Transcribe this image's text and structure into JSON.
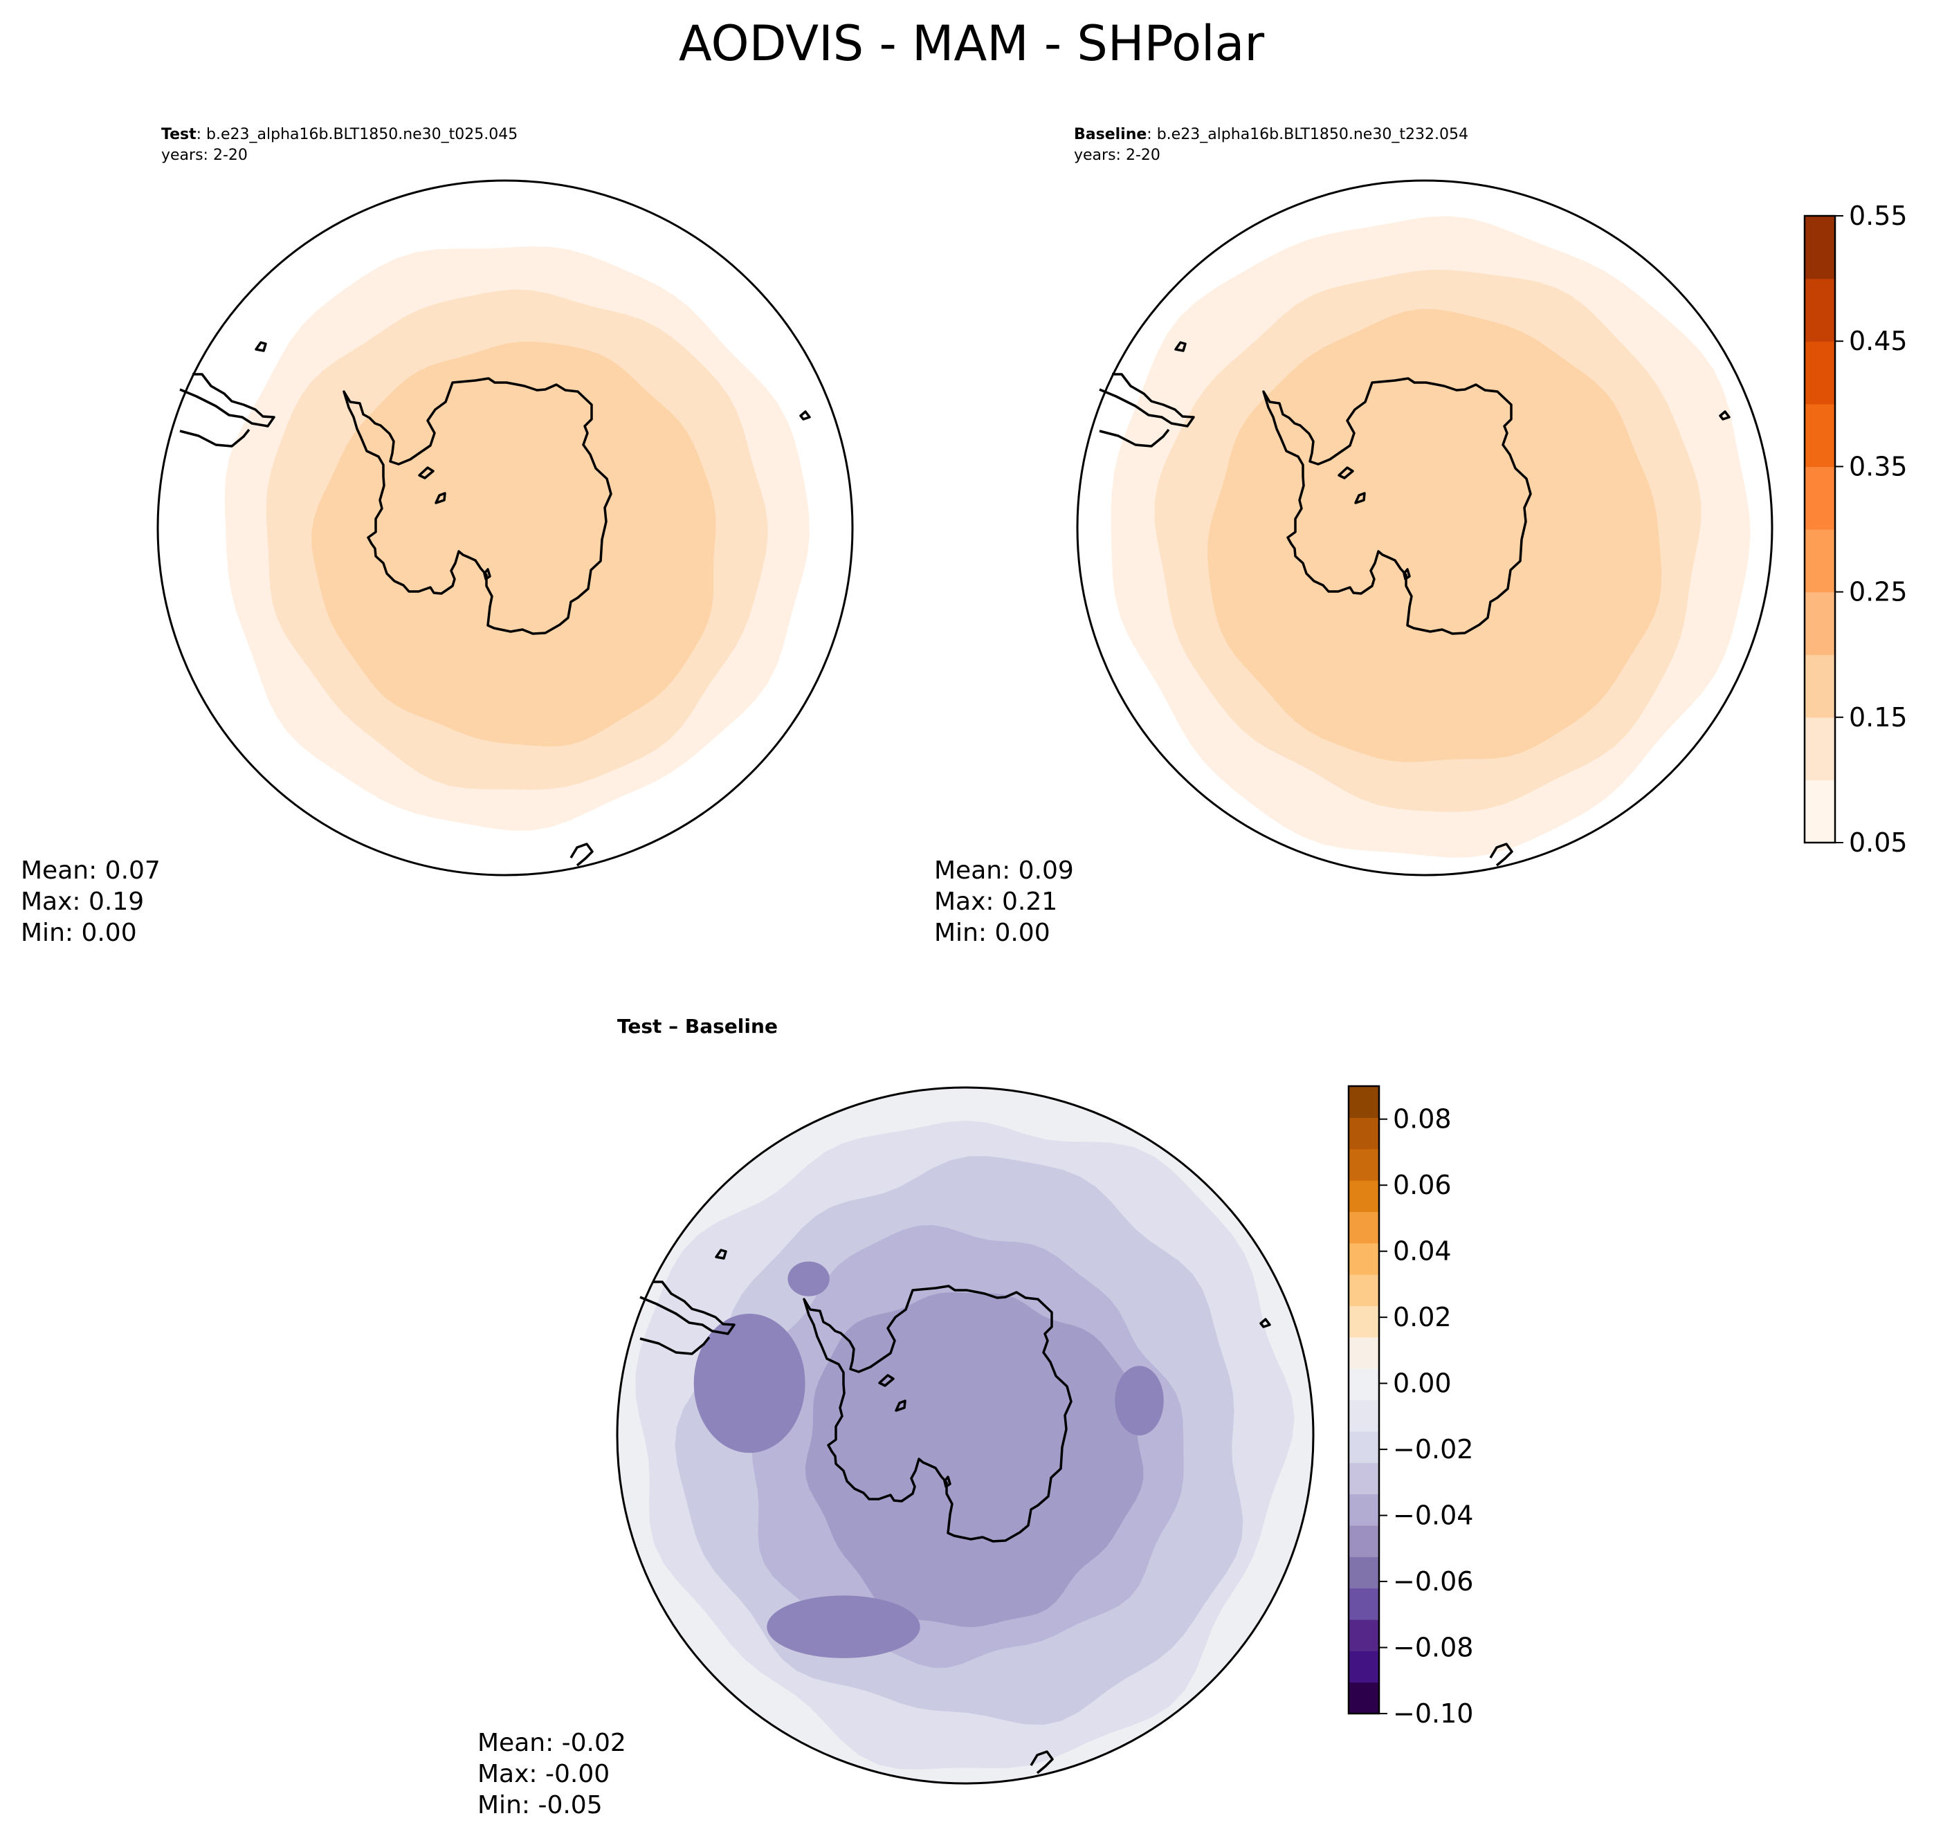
{
  "title": "AODVIS - MAM - SHPolar",
  "panels": {
    "test": {
      "label": "Test",
      "case": ": b.e23_alpha16b.BLT1850.ne30_t025.045",
      "years": "years: 2-20",
      "stats": {
        "mean": "Mean:  0.07",
        "max": "Max:  0.19",
        "min": "Min:  0.00"
      }
    },
    "baseline": {
      "label": "Baseline",
      "case": ": b.e23_alpha16b.BLT1850.ne30_t232.054",
      "years": "years: 2-20",
      "stats": {
        "mean": "Mean:  0.09",
        "max": "Max:  0.21",
        "min": "Min:  0.00"
      }
    },
    "diff": {
      "label": "Test – Baseline",
      "stats": {
        "mean": "Mean: -0.02",
        "max": "Max: -0.00",
        "min": "Min: -0.05"
      }
    }
  },
  "chart_data": [
    {
      "type": "polar-filled-contour-map",
      "name": "Test",
      "projection": "South Polar Stereographic",
      "variable": "AODVIS",
      "color_scale": "abs",
      "rings": [
        {
          "level": 0.0,
          "color": "#ffffff"
        },
        {
          "level": 0.05,
          "color": "#fff0e3"
        },
        {
          "level": 0.1,
          "color": "#fee2c6"
        },
        {
          "level": 0.15,
          "color": "#fdd3a8"
        }
      ],
      "mean": 0.07,
      "max": 0.19,
      "min": 0.0
    },
    {
      "type": "polar-filled-contour-map",
      "name": "Baseline",
      "projection": "South Polar Stereographic",
      "variable": "AODVIS",
      "color_scale": "abs",
      "rings": [
        {
          "level": 0.0,
          "color": "#ffffff"
        },
        {
          "level": 0.05,
          "color": "#fff0e3"
        },
        {
          "level": 0.1,
          "color": "#fee2c6"
        },
        {
          "level": 0.15,
          "color": "#fdd3a8"
        },
        {
          "level": 0.2,
          "color": "#fdb57a"
        }
      ],
      "mean": 0.09,
      "max": 0.21,
      "min": 0.0
    },
    {
      "type": "polar-filled-contour-map",
      "name": "Test – Baseline",
      "projection": "South Polar Stereographic",
      "variable": "AODVIS difference",
      "color_scale": "diff",
      "rings": [
        {
          "level": -0.01,
          "color": "#eeeff3"
        },
        {
          "level": -0.02,
          "color": "#dfdfee"
        },
        {
          "level": -0.03,
          "color": "#cbcae3"
        },
        {
          "level": -0.04,
          "color": "#b8b5d8"
        },
        {
          "level": -0.05,
          "color": "#a29cc9"
        }
      ],
      "mean": -0.02,
      "max": -0.0,
      "min": -0.05
    }
  ],
  "colorbars": {
    "abs": {
      "min": 0.05,
      "max": 0.55,
      "step": 0.05,
      "ticks": [
        "0.05",
        "0.15",
        "0.25",
        "0.35",
        "0.45",
        "0.55"
      ],
      "colors": [
        "#fff5eb",
        "#fee6ce",
        "#fdd0a2",
        "#fdb97d",
        "#fd9e54",
        "#fc8537",
        "#f16913",
        "#e05106",
        "#c44103",
        "#963104"
      ],
      "edge_color": "#7f2704"
    },
    "diff": {
      "min": -0.1,
      "max": 0.09,
      "step": 0.01,
      "ticks": [
        "0.08",
        "0.06",
        "0.04",
        "0.02",
        "0.00",
        "−0.02",
        "−0.04",
        "−0.06",
        "−0.08",
        "−0.10"
      ],
      "colors": [
        "#2d004b",
        "#421382",
        "#542788",
        "#6a51a3",
        "#8073ac",
        "#9c90c1",
        "#b2abd2",
        "#c8c4e0",
        "#d8daeb",
        "#e6e6f0",
        "#eef0f4",
        "#f8f0e6",
        "#fee0b6",
        "#fdcc8a",
        "#fdb863",
        "#f39d3c",
        "#e08214",
        "#c96b0d",
        "#b35806",
        "#8f4502"
      ],
      "edge_color": "#7f3b08"
    }
  }
}
